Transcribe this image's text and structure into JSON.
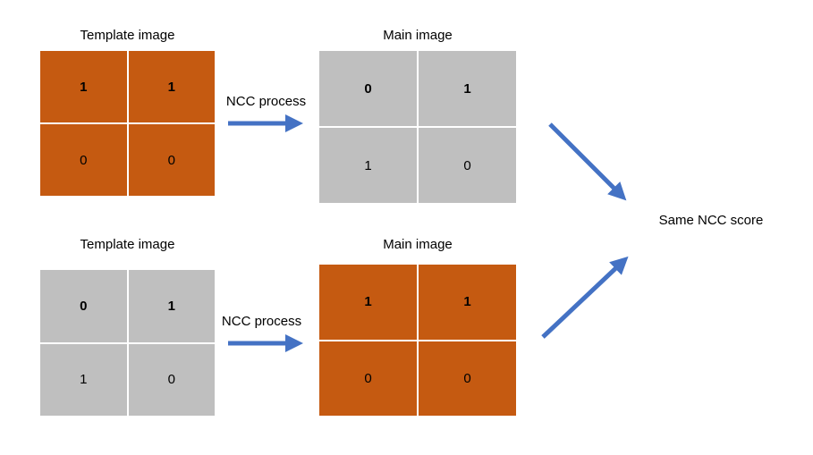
{
  "top": {
    "template_label": "Template image",
    "main_label": "Main image",
    "process_label": "NCC process",
    "template_cells": [
      "1",
      "1",
      "0",
      "0"
    ],
    "main_cells": [
      "0",
      "1",
      "1",
      "0"
    ]
  },
  "bottom": {
    "template_label": "Template image",
    "main_label": "Main image",
    "process_label": "NCC process",
    "template_cells": [
      "0",
      "1",
      "1",
      "0"
    ],
    "main_cells": [
      "1",
      "1",
      "0",
      "0"
    ]
  },
  "result_label": "Same NCC score",
  "colors": {
    "orange": "#c55a11",
    "gray": "#bfbfbf",
    "arrow": "#4472c4"
  }
}
